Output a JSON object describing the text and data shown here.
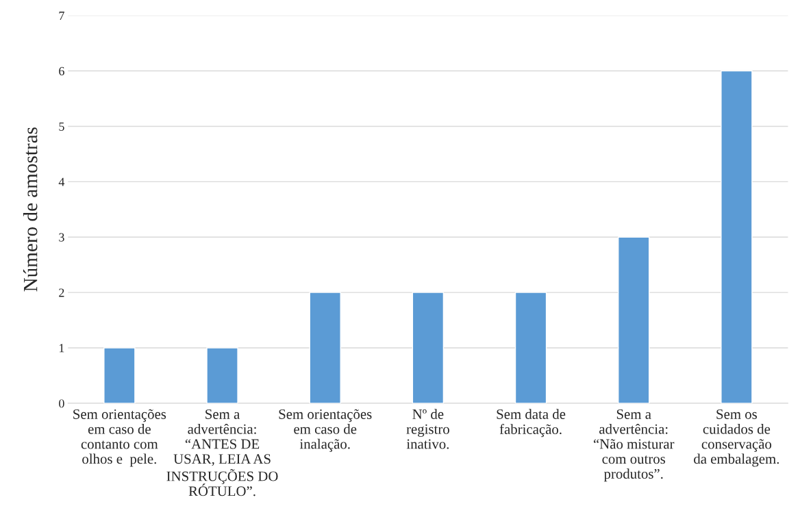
{
  "chart_data": {
    "type": "bar",
    "ylabel": "Número de amostras",
    "categories": [
      "Sem orientações\nem caso de\ncontanto com\nolhos e  pele.",
      "Sem a\nadvertência:\n“ANTES DE\nUSAR, LEIA AS\nINSTRUÇÕES DO\nRÓTULO”.",
      "Sem orientações\nem caso de\ninalação.",
      "Nº de\nregistro\ninativo.",
      "Sem data de\nfabricação.",
      "Sem a\nadvertência:\n“Não misturar\ncom outros\nprodutos”.",
      "Sem os\ncuidados de\nconservação\nda embalagem."
    ],
    "values": [
      1,
      1,
      2,
      2,
      2,
      3,
      6
    ],
    "color": "#5b9bd5",
    "ylim": [
      0,
      7
    ],
    "yticks": [
      0,
      1,
      2,
      3,
      4,
      5,
      6,
      7
    ],
    "grid": "y"
  }
}
